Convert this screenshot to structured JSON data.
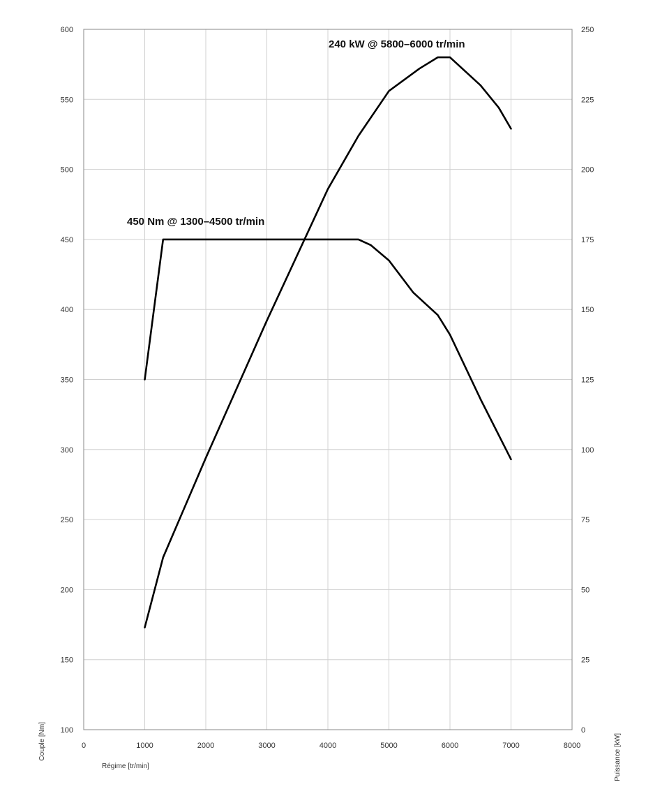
{
  "chart_data": {
    "type": "line",
    "x_axis": {
      "label": "Régime [tr/min]",
      "range": [
        0,
        8000
      ],
      "ticks": [
        "0",
        "1000",
        "2000",
        "3000",
        "4000",
        "5000",
        "6000",
        "7000",
        "8000"
      ]
    },
    "y_left": {
      "label": "Couple [Nm]",
      "range": [
        100,
        600
      ],
      "ticks": [
        "600",
        "550",
        "500",
        "450",
        "400",
        "350",
        "300",
        "250",
        "200",
        "150",
        "100"
      ]
    },
    "y_right": {
      "label": "Puissance [kW]",
      "range": [
        0,
        250
      ],
      "ticks": [
        "250",
        "225",
        "200",
        "175",
        "150",
        "125",
        "100",
        "75",
        "50",
        "25",
        "0"
      ]
    },
    "grid": true,
    "series": [
      {
        "axis": "left",
        "points": [
          [
            1000,
            350
          ],
          [
            1300,
            450
          ],
          [
            4500,
            450
          ],
          [
            4700,
            446
          ],
          [
            5000,
            435
          ],
          [
            5400,
            412
          ],
          [
            5800,
            396
          ],
          [
            6000,
            382
          ],
          [
            6500,
            336
          ],
          [
            7000,
            293
          ]
        ]
      },
      {
        "axis": "right",
        "points": [
          [
            1000,
            36.5
          ],
          [
            1300,
            61.5
          ],
          [
            2000,
            97
          ],
          [
            3000,
            146
          ],
          [
            4000,
            193
          ],
          [
            4500,
            212
          ],
          [
            5000,
            228
          ],
          [
            5500,
            236
          ],
          [
            5800,
            240
          ],
          [
            6000,
            240
          ],
          [
            6500,
            230
          ],
          [
            6800,
            222
          ],
          [
            7000,
            214.5
          ]
        ]
      }
    ],
    "annotations": [
      {
        "text": "450 Nm @ 1300–4500 tr/min",
        "x": 1300,
        "y_left": 450
      },
      {
        "text": "240 kW @ 5800–6000 tr/min",
        "x": 5900,
        "y_right": 240
      }
    ]
  }
}
